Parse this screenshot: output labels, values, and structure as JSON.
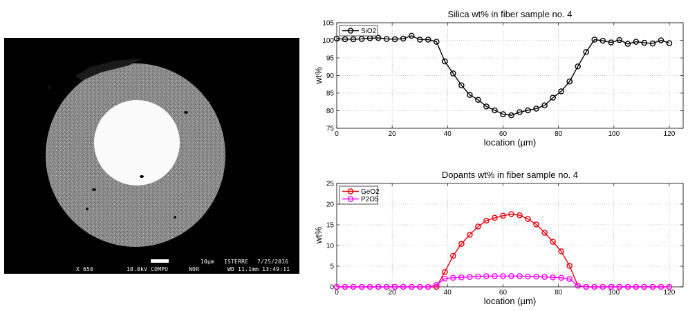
{
  "micrograph": {
    "magnification": "X 650",
    "voltage": "10.0kV COMPO",
    "mode": "NOR",
    "scale": "10µm",
    "lab": "ISTERRE",
    "date": "7/25/2016",
    "wd": "WD 11.1mm 13:49:11"
  },
  "chart_data": [
    {
      "type": "line",
      "title": "Silica wt% in fiber sample no. 4",
      "xlabel": "location (µm)",
      "ylabel": "wt%",
      "xlim": [
        0,
        125
      ],
      "ylim": [
        75,
        105
      ],
      "xticks": [
        0,
        20,
        40,
        60,
        80,
        100,
        120
      ],
      "yticks": [
        75,
        80,
        85,
        90,
        95,
        100,
        105
      ],
      "grid": true,
      "legend": "top-left",
      "x": [
        0,
        3,
        6,
        9,
        12,
        15,
        18,
        21,
        24,
        27,
        30,
        33,
        36,
        39,
        42,
        45,
        48,
        51,
        54,
        57,
        60,
        63,
        66,
        69,
        72,
        75,
        78,
        81,
        84,
        87,
        90,
        93,
        96,
        99,
        102,
        105,
        108,
        111,
        114,
        117,
        120
      ],
      "series": [
        {
          "name": "SiO2",
          "color": "#000000",
          "values": [
            100.5,
            100.3,
            100.3,
            100.4,
            100.6,
            100.7,
            100.4,
            100.3,
            100.5,
            101.3,
            100.2,
            100.2,
            99.6,
            94.0,
            90.6,
            87.2,
            84.5,
            83.1,
            81.2,
            80.1,
            79.0,
            78.7,
            79.6,
            80.1,
            80.6,
            81.5,
            83.7,
            85.5,
            88.3,
            92.6,
            96.7,
            100.2,
            99.9,
            99.4,
            100.1,
            99.0,
            99.6,
            99.3,
            99.1,
            100.0,
            99.2
          ]
        }
      ]
    },
    {
      "type": "line",
      "title": "Dopants wt% in fiber sample no. 4",
      "xlabel": "location (µm)",
      "ylabel": "wt%",
      "xlim": [
        0,
        125
      ],
      "ylim": [
        0,
        25
      ],
      "xticks": [
        0,
        20,
        40,
        60,
        80,
        100,
        120
      ],
      "yticks": [
        0,
        5,
        10,
        15,
        20,
        25
      ],
      "grid": true,
      "legend": "top-left",
      "x": [
        0,
        3,
        6,
        9,
        12,
        15,
        18,
        21,
        24,
        27,
        30,
        33,
        36,
        39,
        42,
        45,
        48,
        51,
        54,
        57,
        60,
        63,
        66,
        69,
        72,
        75,
        78,
        81,
        84,
        87,
        90,
        93,
        96,
        99,
        102,
        105,
        108,
        111,
        114,
        117,
        120
      ],
      "series": [
        {
          "name": "GeO2",
          "color": "#e8000b",
          "values": [
            0,
            0,
            0,
            0,
            0,
            0,
            0,
            0,
            0,
            0,
            0,
            0,
            0,
            3.6,
            7.5,
            10.4,
            12.6,
            14.6,
            16.0,
            16.7,
            17.2,
            17.6,
            17.3,
            16.4,
            15.1,
            13.1,
            10.9,
            8.6,
            5.1,
            0.3,
            0,
            0,
            0,
            0,
            0,
            0,
            0,
            0,
            0,
            0,
            0
          ]
        },
        {
          "name": "P2O5",
          "color": "#ff00ff",
          "values": [
            0,
            0,
            0,
            0,
            0,
            0,
            0,
            0,
            0,
            0,
            0,
            0,
            0.5,
            2.0,
            2.2,
            2.3,
            2.4,
            2.5,
            2.6,
            2.6,
            2.6,
            2.6,
            2.6,
            2.5,
            2.5,
            2.4,
            2.3,
            2.2,
            1.9,
            0.3,
            0,
            0,
            0,
            0,
            0,
            0,
            0,
            0,
            0,
            0,
            0
          ]
        }
      ]
    }
  ]
}
